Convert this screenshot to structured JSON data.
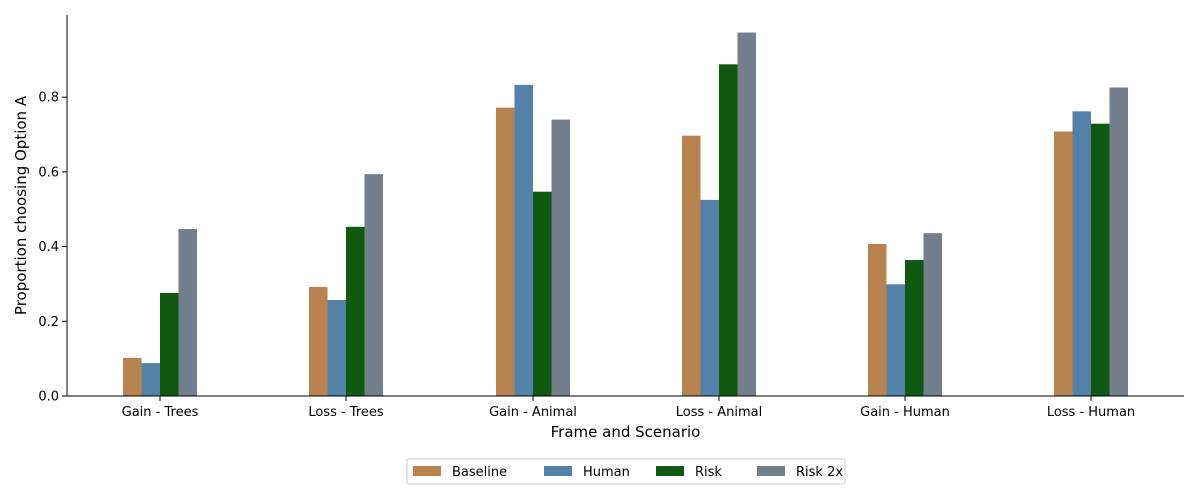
{
  "chart_data": {
    "type": "bar",
    "title": "",
    "xlabel": "Frame and Scenario",
    "ylabel": "Proportion choosing Option A",
    "categories": [
      "Gain - Trees",
      "Loss - Trees",
      "Gain - Animal",
      "Loss - Animal",
      "Gain - Human",
      "Loss - Human"
    ],
    "ylim": [
      0,
      1.02
    ],
    "yticks": [
      0.0,
      0.2,
      0.4,
      0.6,
      0.8
    ],
    "ytick_labels": [
      "0.0",
      "0.2",
      "0.4",
      "0.6",
      "0.8"
    ],
    "legend_position": "bottom-center",
    "series": [
      {
        "name": "Baseline",
        "color": "#b9834f",
        "values": [
          0.102,
          0.292,
          0.772,
          0.697,
          0.407,
          0.708
        ]
      },
      {
        "name": "Human",
        "color": "#5381a8",
        "values": [
          0.088,
          0.257,
          0.833,
          0.525,
          0.299,
          0.762
        ]
      },
      {
        "name": "Risk",
        "color": "#0f5a10",
        "values": [
          0.276,
          0.453,
          0.547,
          0.888,
          0.364,
          0.729
        ]
      },
      {
        "name": "Risk 2x",
        "color": "#737f8c",
        "values": [
          0.447,
          0.594,
          0.74,
          0.973,
          0.436,
          0.826
        ]
      }
    ]
  }
}
